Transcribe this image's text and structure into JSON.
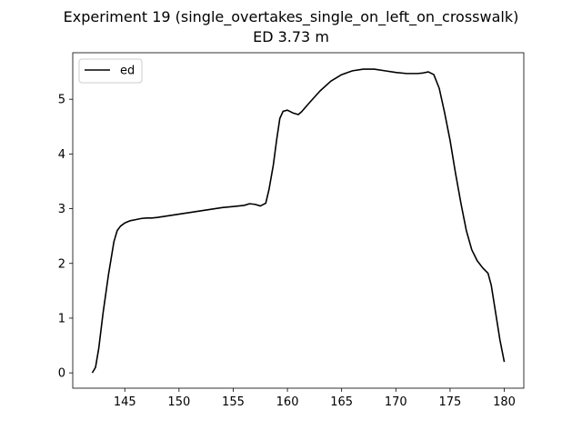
{
  "chart_data": {
    "type": "line",
    "title": "Experiment 19 (single_overtakes_single_on_left_on_crosswalk)",
    "subtitle": "ED 3.73 m",
    "xlabel": "",
    "ylabel": "",
    "xlim": [
      140.2,
      181.8
    ],
    "ylim": [
      -0.28,
      5.85
    ],
    "xticks": [
      145,
      150,
      155,
      160,
      165,
      170,
      175,
      180
    ],
    "yticks": [
      0,
      1,
      2,
      3,
      4,
      5
    ],
    "grid": false,
    "legend": {
      "placement": "upper-left",
      "entries": [
        "ed"
      ]
    },
    "series": [
      {
        "name": "ed",
        "color": "#000000",
        "x": [
          142.0,
          142.3,
          142.6,
          143.0,
          143.5,
          144.0,
          144.3,
          144.6,
          145.0,
          145.5,
          146.0,
          146.5,
          147.0,
          147.5,
          148.0,
          150.0,
          152.0,
          154.0,
          156.0,
          156.5,
          157.0,
          157.5,
          158.0,
          158.3,
          158.7,
          159.0,
          159.3,
          159.6,
          160.0,
          160.5,
          161.0,
          161.3,
          162.0,
          163.0,
          164.0,
          165.0,
          166.0,
          167.0,
          168.0,
          169.0,
          170.0,
          171.0,
          172.0,
          172.5,
          173.0,
          173.5,
          174.0,
          174.5,
          175.0,
          175.5,
          176.0,
          176.5,
          177.0,
          177.5,
          178.0,
          178.5,
          178.8,
          179.2,
          179.6,
          180.0
        ],
        "y": [
          0.0,
          0.1,
          0.45,
          1.1,
          1.8,
          2.4,
          2.6,
          2.68,
          2.74,
          2.78,
          2.8,
          2.82,
          2.83,
          2.83,
          2.84,
          2.9,
          2.96,
          3.02,
          3.06,
          3.09,
          3.08,
          3.05,
          3.1,
          3.35,
          3.8,
          4.25,
          4.65,
          4.78,
          4.8,
          4.75,
          4.72,
          4.77,
          4.93,
          5.15,
          5.33,
          5.45,
          5.52,
          5.55,
          5.55,
          5.52,
          5.49,
          5.47,
          5.47,
          5.48,
          5.5,
          5.45,
          5.2,
          4.75,
          4.25,
          3.65,
          3.1,
          2.6,
          2.25,
          2.05,
          1.92,
          1.82,
          1.6,
          1.1,
          0.6,
          0.2
        ]
      }
    ]
  }
}
